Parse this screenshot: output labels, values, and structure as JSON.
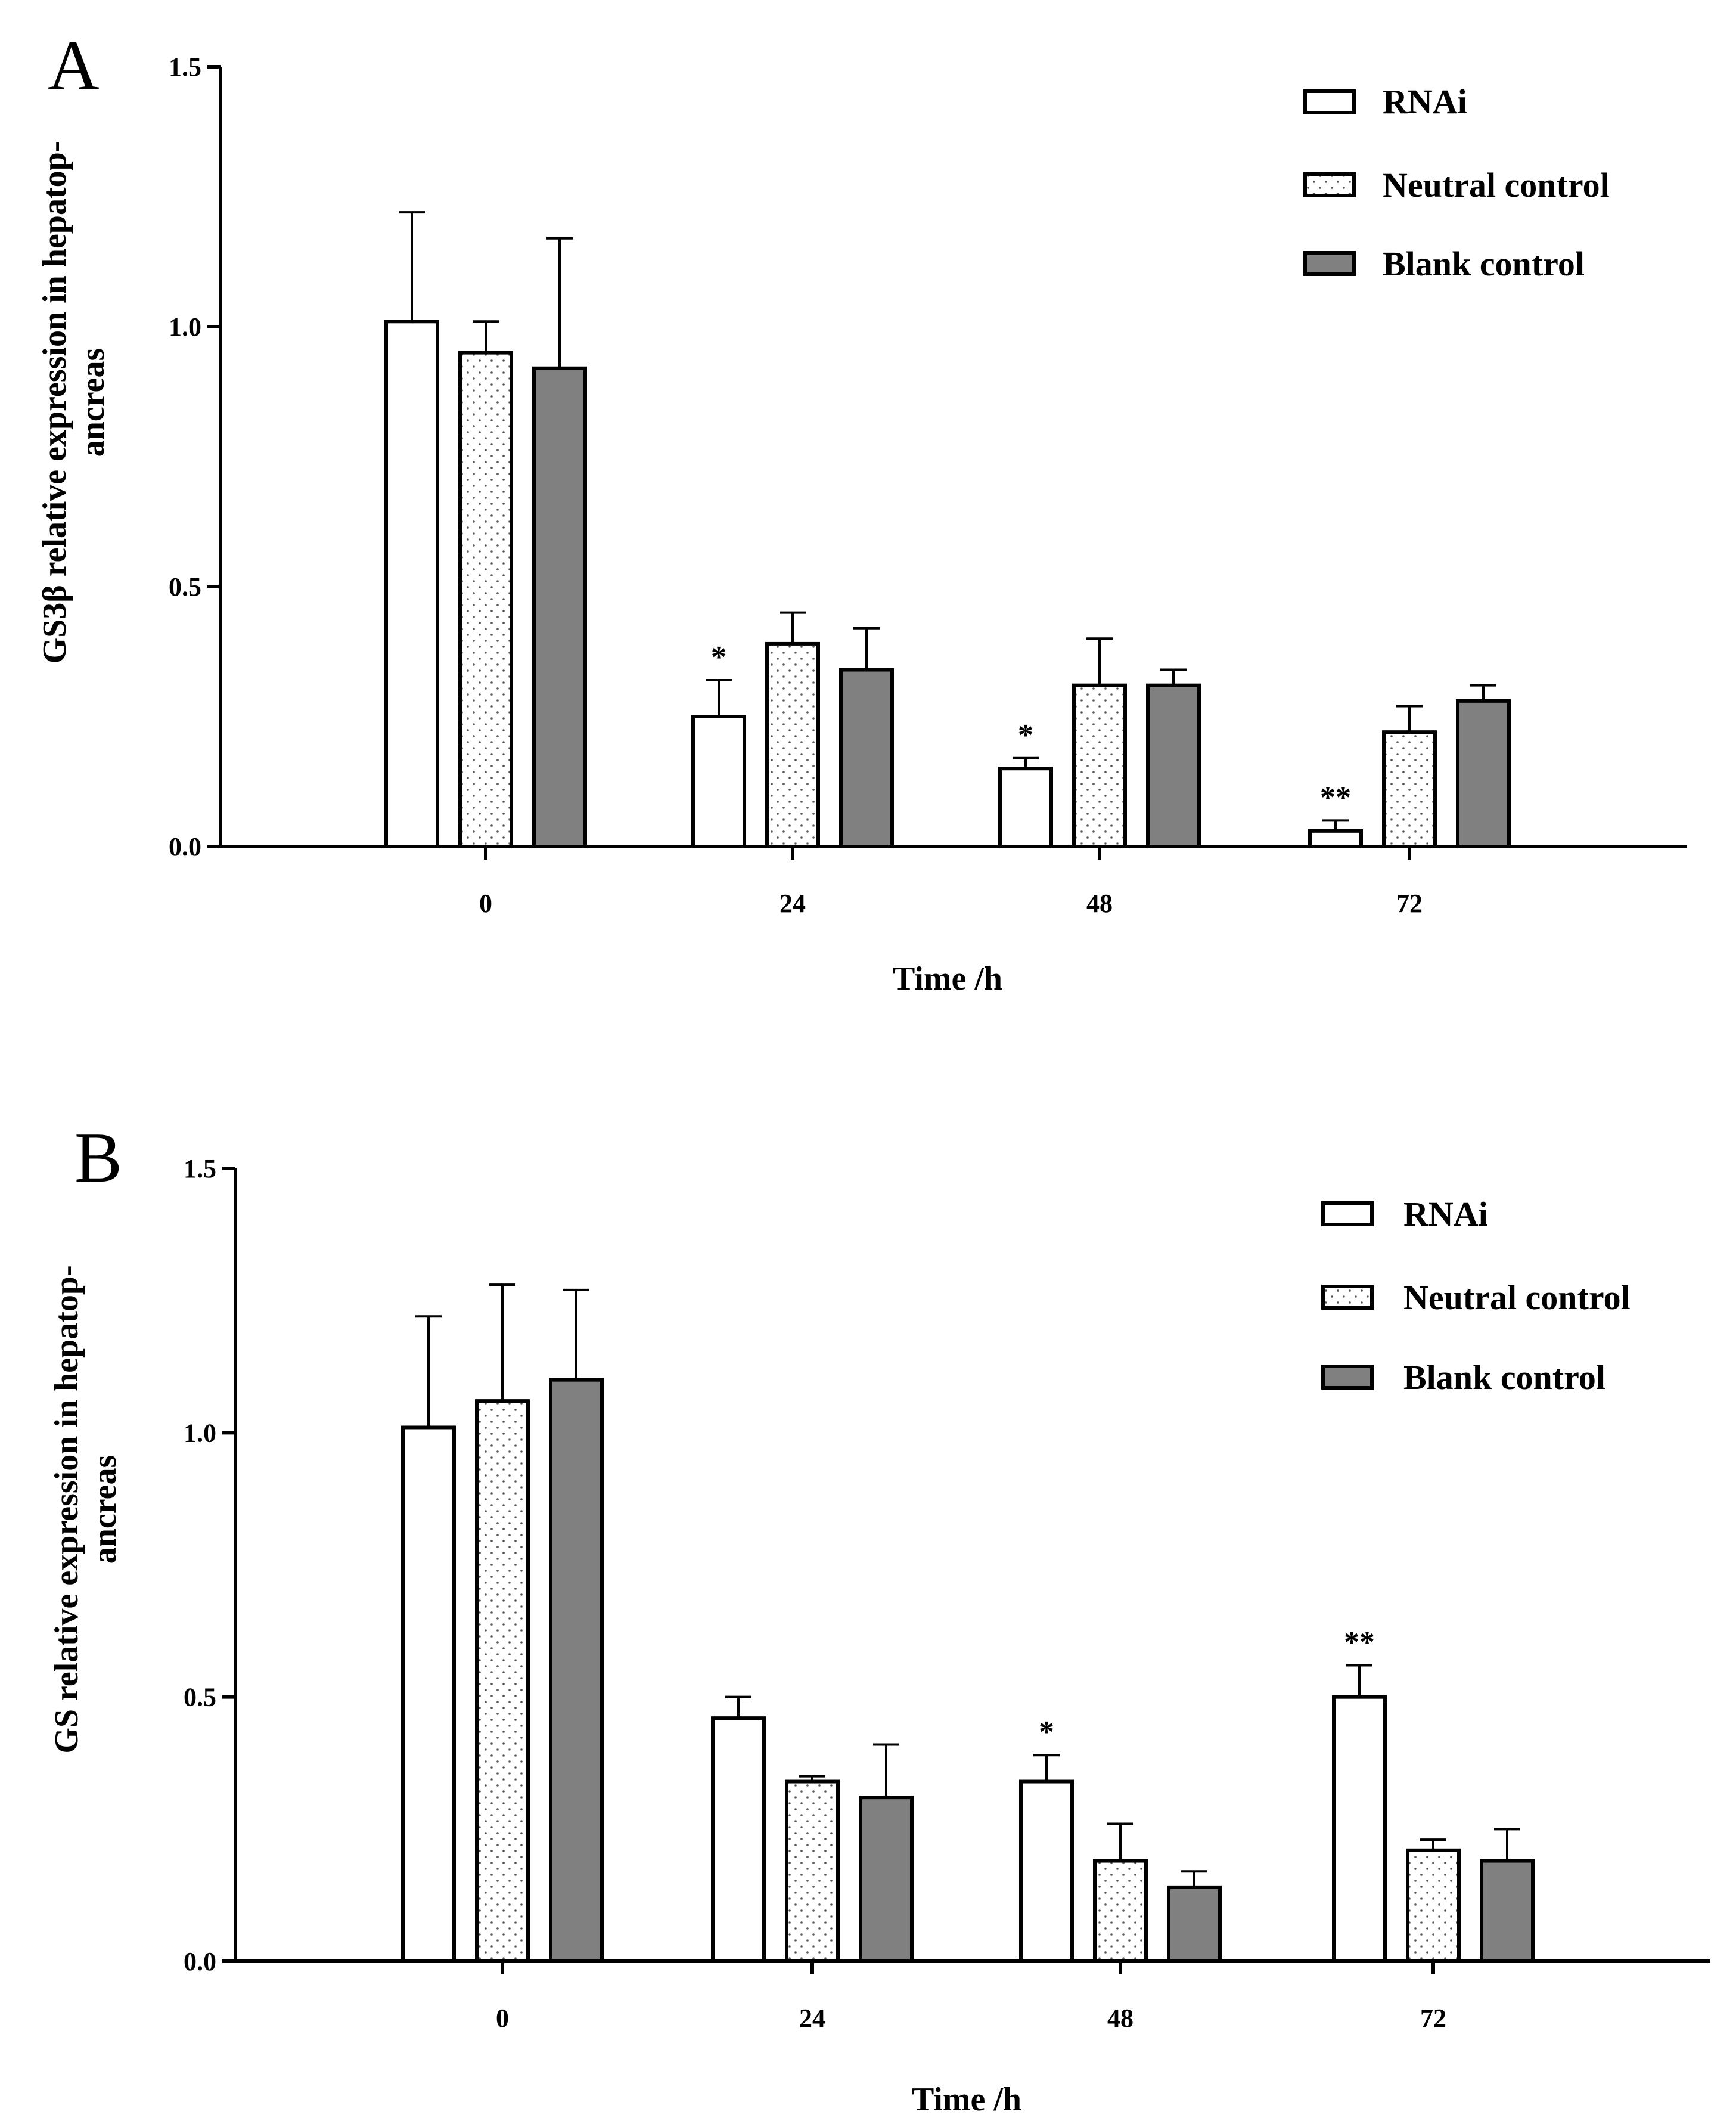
{
  "chart_data": [
    {
      "type": "bar",
      "panel_label": "A",
      "categories": [
        "0",
        "24",
        "48",
        "72"
      ],
      "series": [
        {
          "name": "RNAi",
          "fill": "white",
          "values": [
            1.01,
            0.25,
            0.15,
            0.03
          ],
          "errors": [
            0.21,
            0.07,
            0.02,
            0.02
          ],
          "significance": [
            "",
            "*",
            "*",
            "**"
          ]
        },
        {
          "name": "Neutral control",
          "fill": "dotted",
          "values": [
            0.95,
            0.39,
            0.31,
            0.22
          ],
          "errors": [
            0.06,
            0.06,
            0.09,
            0.05
          ],
          "significance": [
            "",
            "",
            "",
            ""
          ]
        },
        {
          "name": "Blank control",
          "fill": "gray",
          "values": [
            0.92,
            0.34,
            0.31,
            0.28
          ],
          "errors": [
            0.25,
            0.08,
            0.03,
            0.03
          ],
          "significance": [
            "",
            "",
            "",
            ""
          ]
        }
      ],
      "xlabel": "Time /h",
      "ylabel_lines": [
        "GS3β relative expression in hepatop-",
        "ancreas"
      ],
      "ylim": [
        0,
        1.5
      ],
      "yticks": [
        "0.0",
        "0.5",
        "1.0",
        "1.5"
      ],
      "legend_position": "top-right",
      "grid": false
    },
    {
      "type": "bar",
      "panel_label": "B",
      "categories": [
        "0",
        "24",
        "48",
        "72"
      ],
      "series": [
        {
          "name": "RNAi",
          "fill": "white",
          "values": [
            1.01,
            0.46,
            0.34,
            0.5
          ],
          "errors": [
            0.21,
            0.04,
            0.05,
            0.06
          ],
          "significance": [
            "",
            "",
            "*",
            "**"
          ]
        },
        {
          "name": "Neutral control",
          "fill": "dotted",
          "values": [
            1.06,
            0.34,
            0.19,
            0.21
          ],
          "errors": [
            0.22,
            0.01,
            0.07,
            0.02
          ],
          "significance": [
            "",
            "",
            "",
            ""
          ]
        },
        {
          "name": "Blank control",
          "fill": "gray",
          "values": [
            1.1,
            0.31,
            0.14,
            0.19
          ],
          "errors": [
            0.17,
            0.1,
            0.03,
            0.06
          ],
          "significance": [
            "",
            "",
            "",
            ""
          ]
        }
      ],
      "xlabel": "Time /h",
      "ylabel_lines": [
        "GS relative expression in hepatop-",
        "ancreas"
      ],
      "ylim": [
        0,
        1.5
      ],
      "yticks": [
        "0.0",
        "0.5",
        "1.0",
        "1.5"
      ],
      "legend_position": "top-right",
      "grid": false
    }
  ],
  "colors": {
    "axis": "#000000",
    "gray_bar": "#808080",
    "white_bar": "#ffffff",
    "dot": "#555555"
  }
}
